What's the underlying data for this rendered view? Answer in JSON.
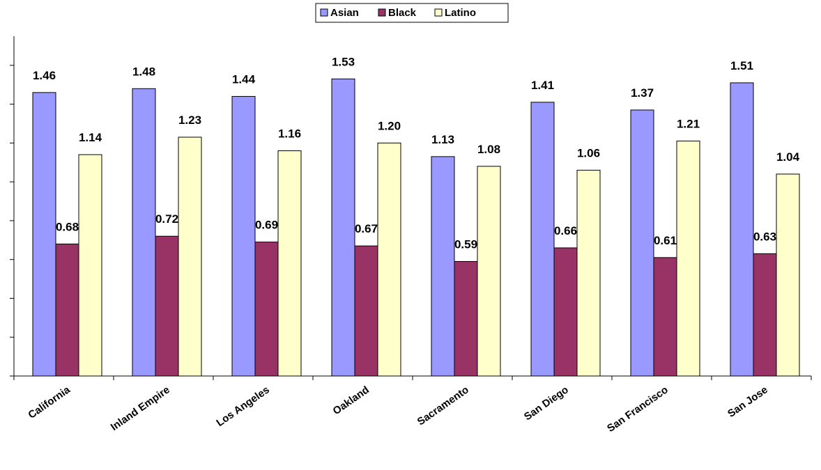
{
  "chart_data": {
    "type": "bar",
    "title": "",
    "xlabel": "",
    "ylabel": "",
    "categories": [
      "California",
      "Inland Empire",
      "Los Angeles",
      "Oakland",
      "Sacramento",
      "San Diego",
      "San Francisco",
      "San Jose"
    ],
    "series": [
      {
        "name": "Asian",
        "color": "#9999ff",
        "values": [
          1.46,
          1.48,
          1.44,
          1.53,
          1.13,
          1.41,
          1.37,
          1.51
        ]
      },
      {
        "name": "Black",
        "color": "#993366",
        "values": [
          0.68,
          0.72,
          0.69,
          0.67,
          0.59,
          0.66,
          0.61,
          0.63
        ]
      },
      {
        "name": "Latino",
        "color": "#ffffcc",
        "values": [
          1.14,
          1.23,
          1.16,
          1.2,
          1.08,
          1.06,
          1.21,
          1.04
        ]
      }
    ],
    "data_label_values": [
      [
        "1.46",
        "1.48",
        "1.44",
        "1.53",
        "1.13",
        "1.41",
        "1.37",
        "1.51"
      ],
      [
        "0.68",
        "0.72",
        "0.69",
        "0.67",
        "0.59",
        "0.66",
        "0.61",
        "0.63"
      ],
      [
        "1.14",
        "1.23",
        "1.16",
        "1.20",
        "1.08",
        "1.06",
        "1.21",
        "1.04"
      ]
    ],
    "ylim": [
      0,
      1.75
    ],
    "ytick_step": 0.2,
    "ytick_labels_shown": false,
    "grid": false,
    "legend_position": "top-center"
  }
}
